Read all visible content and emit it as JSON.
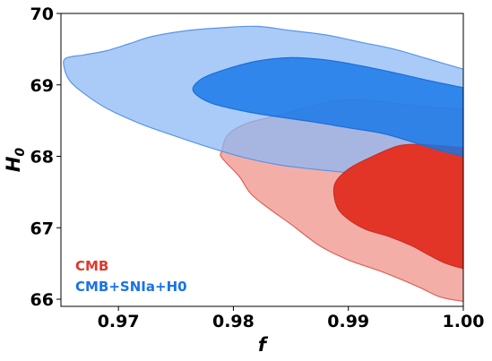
{
  "chart_data": {
    "type": "contour",
    "xlabel": "f",
    "ylabel_main": "H",
    "ylabel_sub": "0",
    "xlim": [
      0.965,
      1.0
    ],
    "ylim": [
      65.9,
      70.0
    ],
    "xticks": [
      {
        "value": 0.97,
        "label": "0.97"
      },
      {
        "value": 0.98,
        "label": "0.98"
      },
      {
        "value": 0.99,
        "label": "0.99"
      },
      {
        "value": 1.0,
        "label": "1.00"
      }
    ],
    "yticks": [
      {
        "value": 66,
        "label": "66"
      },
      {
        "value": 67,
        "label": "67"
      },
      {
        "value": 68,
        "label": "68"
      },
      {
        "value": 69,
        "label": "69"
      },
      {
        "value": 70,
        "label": "70"
      }
    ],
    "grid": false,
    "legend_placement": "lower-left",
    "series": [
      {
        "name": "CMB",
        "label_color": "#e0392b",
        "levels": [
          {
            "level": "outer",
            "fill": "#f4aea8",
            "stroke": "#e06055",
            "points": [
              [
                1.0,
                68.66
              ],
              [
                0.997,
                68.69
              ],
              [
                0.994,
                68.74
              ],
              [
                0.991,
                68.79
              ],
              [
                0.989,
                68.78
              ],
              [
                0.987,
                68.71
              ],
              [
                0.985,
                68.62
              ],
              [
                0.983,
                68.54
              ],
              [
                0.981,
                68.45
              ],
              [
                0.9795,
                68.3
              ],
              [
                0.979,
                68.08
              ],
              [
                0.979,
                67.98
              ],
              [
                0.9805,
                67.72
              ],
              [
                0.9815,
                67.48
              ],
              [
                0.983,
                67.28
              ],
              [
                0.985,
                67.05
              ],
              [
                0.9875,
                66.75
              ],
              [
                0.99,
                66.55
              ],
              [
                0.993,
                66.38
              ],
              [
                0.996,
                66.18
              ],
              [
                0.998,
                66.03
              ],
              [
                1.0,
                65.97
              ]
            ]
          },
          {
            "level": "inner",
            "fill": "#e33527",
            "stroke": "#cc2e22",
            "points": [
              [
                1.0,
                68.12
              ],
              [
                0.997,
                68.16
              ],
              [
                0.9945,
                68.15
              ],
              [
                0.992,
                67.99
              ],
              [
                0.99,
                67.82
              ],
              [
                0.9888,
                67.6
              ],
              [
                0.989,
                67.3
              ],
              [
                0.99,
                67.12
              ],
              [
                0.9915,
                66.98
              ],
              [
                0.9935,
                66.88
              ],
              [
                0.9955,
                66.75
              ],
              [
                0.997,
                66.62
              ],
              [
                0.9985,
                66.5
              ],
              [
                1.0,
                66.43
              ]
            ]
          }
        ]
      },
      {
        "name": "CMB+SNIa+H0",
        "label_color": "#1a73e8",
        "levels": [
          {
            "level": "outer",
            "fill": "rgba(140,185,245,0.74)",
            "stroke": "#5a94e8",
            "points": [
              [
                1.0,
                69.22
              ],
              [
                0.997,
                69.36
              ],
              [
                0.994,
                69.5
              ],
              [
                0.991,
                69.6
              ],
              [
                0.988,
                69.7
              ],
              [
                0.985,
                69.76
              ],
              [
                0.982,
                69.82
              ],
              [
                0.979,
                69.8
              ],
              [
                0.976,
                69.76
              ],
              [
                0.973,
                69.68
              ],
              [
                0.971,
                69.58
              ],
              [
                0.969,
                69.48
              ],
              [
                0.967,
                69.42
              ],
              [
                0.9654,
                69.37
              ],
              [
                0.9653,
                69.23
              ],
              [
                0.9658,
                69.05
              ],
              [
                0.967,
                68.88
              ],
              [
                0.969,
                68.67
              ],
              [
                0.972,
                68.45
              ],
              [
                0.975,
                68.28
              ],
              [
                0.978,
                68.12
              ],
              [
                0.981,
                67.98
              ],
              [
                0.984,
                67.88
              ],
              [
                0.987,
                67.82
              ],
              [
                0.99,
                67.77
              ],
              [
                0.993,
                67.72
              ],
              [
                0.996,
                67.66
              ],
              [
                0.998,
                67.6
              ],
              [
                1.0,
                67.56
              ]
            ]
          },
          {
            "level": "inner",
            "fill": "rgba(22,118,232,0.82)",
            "stroke": "#1a6fd8",
            "points": [
              [
                1.0,
                68.96
              ],
              [
                0.997,
                69.06
              ],
              [
                0.994,
                69.17
              ],
              [
                0.991,
                69.27
              ],
              [
                0.988,
                69.35
              ],
              [
                0.985,
                69.38
              ],
              [
                0.982,
                69.33
              ],
              [
                0.979,
                69.2
              ],
              [
                0.9772,
                69.08
              ],
              [
                0.9765,
                68.92
              ],
              [
                0.978,
                68.75
              ],
              [
                0.981,
                68.63
              ],
              [
                0.984,
                68.55
              ],
              [
                0.987,
                68.48
              ],
              [
                0.99,
                68.4
              ],
              [
                0.993,
                68.32
              ],
              [
                0.996,
                68.18
              ],
              [
                0.998,
                68.08
              ],
              [
                1.0,
                68.0
              ]
            ]
          }
        ]
      }
    ]
  }
}
